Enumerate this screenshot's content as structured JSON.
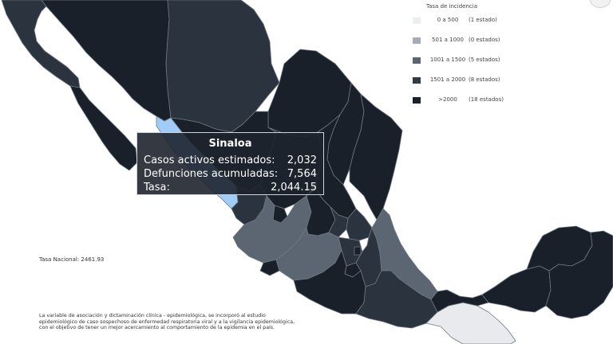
{
  "legend": {
    "title": "Tasa de incidencia",
    "items": [
      {
        "range": "0 a 500",
        "count": "(1 estado)",
        "color": "#eceef0"
      },
      {
        "range": "501 a 1000",
        "count": "(0 estados)",
        "color": "#a4acb6"
      },
      {
        "range": "1001 a 1500",
        "count": "(5 estados)",
        "color": "#5c6672"
      },
      {
        "range": "1501 a 2000",
        "count": "(8 estados)",
        "color": "#323a45"
      },
      {
        "range": ">2000",
        "count": "(18 estados)",
        "color": "#1a2029"
      }
    ]
  },
  "tooltip": {
    "state": "Sinaloa",
    "rows": [
      {
        "label": "Casos activos estimados:",
        "value": "2,032"
      },
      {
        "label": "Defunciones acumuladas:",
        "value": "7,564"
      },
      {
        "label": "Tasa:",
        "value": "2,044.15"
      }
    ]
  },
  "national_rate": "Tasa Nacional: 2461.93",
  "footnote": [
    "La variable de asociación y dictaminación clínica - epidemiológica, se incorporó al estudio",
    "epidemiológico de caso sospechoso de enfermedad respiratoria viral y a la vigilancia epidemiológica,",
    "con el objetivo de tener un mejor acercamiento al comportamiento de la epidemia en el país."
  ],
  "map": {
    "highlighted_state": "Sinaloa",
    "colors": {
      "darkest": "#1a2029",
      "dark": "#2b333e",
      "mid": "#5c6672",
      "light": "#e8eaed",
      "selected": "#9fcdf7",
      "border": "#6e7884"
    }
  }
}
